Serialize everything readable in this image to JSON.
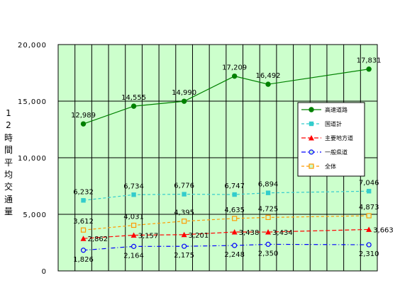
{
  "chart_data": {
    "type": "line",
    "ylabel": "12時間平均交通量",
    "ylim": [
      0,
      20000
    ],
    "yticks": [
      "0",
      "5,000",
      "10,000",
      "15,000",
      "20,000"
    ],
    "ytick_values": [
      0,
      5000,
      10000,
      15000,
      20000
    ],
    "x_count": 19,
    "grid": true,
    "legend_position": "right",
    "series": [
      {
        "name": "高速道路",
        "color": "#008000",
        "marker": "circle-filled",
        "dash": "",
        "x": [
          1,
          4,
          7,
          10,
          12,
          18
        ],
        "values": [
          12989,
          14555,
          14990,
          17209,
          16492,
          17831
        ],
        "labels": [
          "12,989",
          "14,555",
          "14,990",
          "17,209",
          "16,492",
          "17,831"
        ]
      },
      {
        "name": "国道計",
        "color": "#33cccc",
        "marker": "square-filled",
        "dash": "4,3",
        "x": [
          1,
          4,
          7,
          10,
          12,
          18
        ],
        "values": [
          6232,
          6734,
          6776,
          6747,
          6894,
          7046
        ],
        "labels": [
          "6,232",
          "6,734",
          "6,776",
          "6,747",
          "6,894",
          "7,046"
        ]
      },
      {
        "name": "主要地方道",
        "color": "#ff0000",
        "marker": "triangle-filled",
        "dash": "6,3",
        "x": [
          1,
          4,
          7,
          10,
          12,
          18
        ],
        "values": [
          2862,
          3157,
          3201,
          3438,
          3434,
          3663
        ],
        "labels": [
          "2,862",
          "3,157",
          "3,201",
          "3,438",
          "3,434",
          "3,663"
        ]
      },
      {
        "name": "一般県道",
        "color": "#0000ff",
        "marker": "circle-open",
        "dash": "6,3,1,3",
        "x": [
          1,
          4,
          7,
          10,
          12,
          18
        ],
        "values": [
          1826,
          2164,
          2175,
          2248,
          2350,
          2310
        ],
        "labels": [
          "1,826",
          "2,164",
          "2,175",
          "2,248",
          "2,350",
          "2,310"
        ]
      },
      {
        "name": "全体",
        "color": "#ff9900",
        "marker": "square-open",
        "dash": "4,3",
        "x": [
          1,
          4,
          7,
          10,
          12,
          18
        ],
        "values": [
          3612,
          4031,
          4395,
          4635,
          4725,
          4873
        ],
        "labels": [
          "3,612",
          "4,031",
          "4,395",
          "4,635",
          "4,725",
          "4,873"
        ]
      }
    ]
  }
}
